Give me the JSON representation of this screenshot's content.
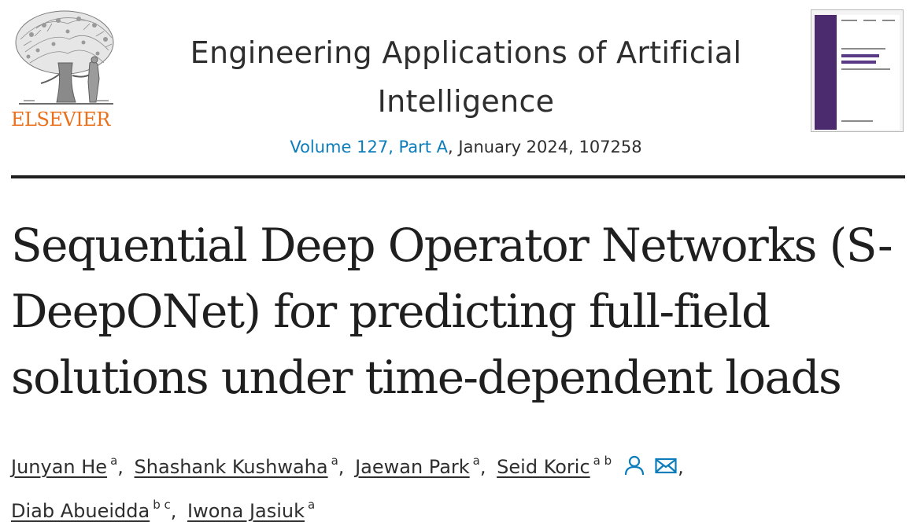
{
  "publisher": {
    "logo_text": "ELSEVIER",
    "logo_color": "#e9711c",
    "logo_icon": "tree-icon"
  },
  "journal": {
    "title": "Engineering Applications of Artificial Intelligence",
    "issue_link": "Volume 127, Part A",
    "issue_rest": ", January 2024, 107258",
    "link_color": "#0c7dbb"
  },
  "cover": {
    "icon": "journal-cover-thumbnail",
    "accent_color": "#4b2a6e"
  },
  "article": {
    "title": "Sequential Deep Operator Networks (S-DeepONet) for predicting full-field solutions under time-dependent loads"
  },
  "authors": [
    {
      "name": "Junyan He",
      "affiliations": "a"
    },
    {
      "name": "Shashank Kushwaha",
      "affiliations": "a"
    },
    {
      "name": "Jaewan Park",
      "affiliations": "a"
    },
    {
      "name": "Seid Koric",
      "affiliations": "a b",
      "icons": [
        "person-icon",
        "mail-icon"
      ]
    },
    {
      "name": "Diab Abueidda",
      "affiliations": "b c"
    },
    {
      "name": "Iwona Jasiuk",
      "affiliations": "a"
    }
  ],
  "separators": {
    "comma": ","
  }
}
